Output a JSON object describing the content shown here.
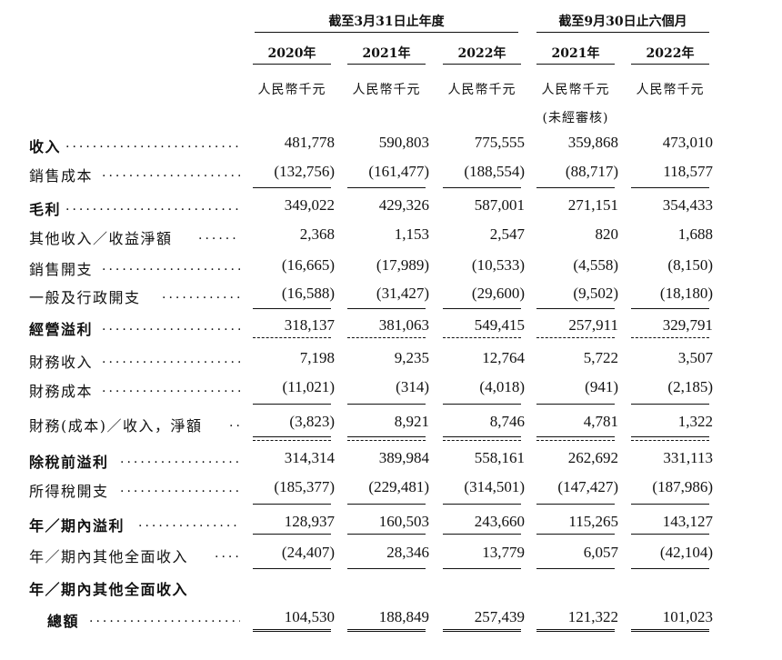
{
  "header": {
    "group1": "截至3月31日止年度",
    "group2": "截至9月30日止六個月",
    "years": [
      "2020年",
      "2021年",
      "2022年",
      "2021年",
      "2022年"
    ],
    "unit": "人民幣千元",
    "unaudited": "(未經審核)"
  },
  "rows": [
    {
      "label": "收入",
      "values": [
        "481,778",
        "590,803",
        "775,555",
        "359,868",
        "473,010"
      ]
    },
    {
      "label": "銷售成本",
      "values": [
        "(132,756)",
        "(161,477)",
        "(188,554)",
        "(88,717)",
        "118,577"
      ]
    },
    {
      "label": "毛利",
      "values": [
        "349,022",
        "429,326",
        "587,001",
        "271,151",
        "354,433"
      ]
    },
    {
      "label": "其他收入／收益淨額",
      "values": [
        "2,368",
        "1,153",
        "2,547",
        "820",
        "1,688"
      ]
    },
    {
      "label": "銷售開支",
      "values": [
        "(16,665)",
        "(17,989)",
        "(10,533)",
        "(4,558)",
        "(8,150)"
      ]
    },
    {
      "label": "一般及行政開支",
      "values": [
        "(16,588)",
        "(31,427)",
        "(29,600)",
        "(9,502)",
        "(18,180)"
      ]
    },
    {
      "label": "經營溢利",
      "values": [
        "318,137",
        "381,063",
        "549,415",
        "257,911",
        "329,791"
      ]
    },
    {
      "label": "財務收入",
      "values": [
        "7,198",
        "9,235",
        "12,764",
        "5,722",
        "3,507"
      ]
    },
    {
      "label": "財務成本",
      "values": [
        "(11,021)",
        "(314)",
        "(4,018)",
        "(941)",
        "(2,185)"
      ]
    },
    {
      "label": "財務(成本)／收入，淨額",
      "values": [
        "(3,823)",
        "8,921",
        "8,746",
        "4,781",
        "1,322"
      ]
    },
    {
      "label": "除稅前溢利",
      "values": [
        "314,314",
        "389,984",
        "558,161",
        "262,692",
        "331,113"
      ]
    },
    {
      "label": "所得稅開支",
      "values": [
        "(185,377)",
        "(229,481)",
        "(314,501)",
        "(147,427)",
        "(187,986)"
      ]
    },
    {
      "label": "年／期內溢利",
      "values": [
        "128,937",
        "160,503",
        "243,660",
        "115,265",
        "143,127"
      ]
    },
    {
      "label": "年／期內其他全面收入",
      "values": [
        "(24,407)",
        "28,346",
        "13,779",
        "6,057",
        "(42,104)"
      ]
    },
    {
      "label": "年／期內其他全面收入",
      "values": []
    },
    {
      "label": "總額",
      "values": [
        "104,530",
        "188,849",
        "257,439",
        "121,322",
        "101,023"
      ]
    }
  ]
}
